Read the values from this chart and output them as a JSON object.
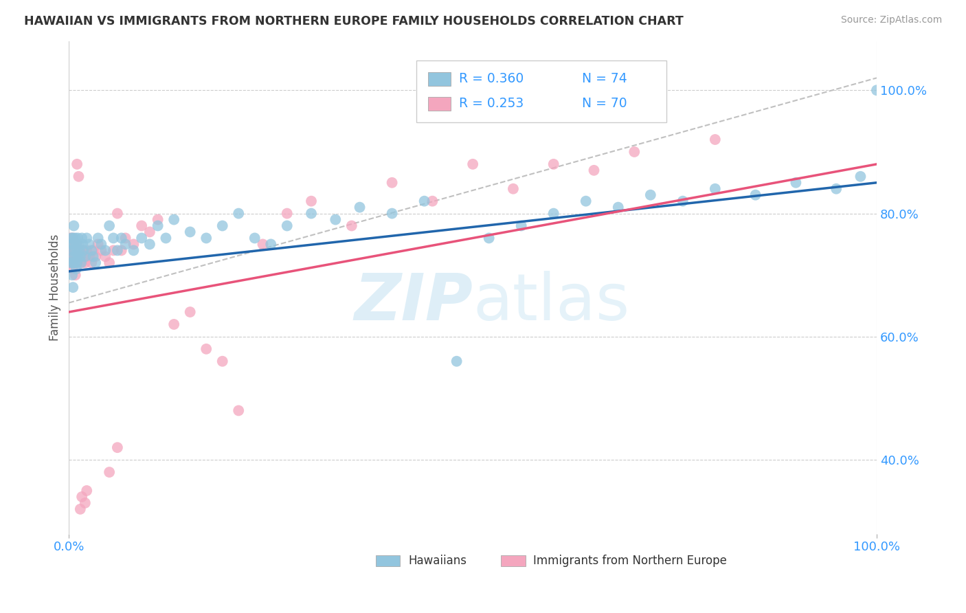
{
  "title": "HAWAIIAN VS IMMIGRANTS FROM NORTHERN EUROPE FAMILY HOUSEHOLDS CORRELATION CHART",
  "source_text": "Source: ZipAtlas.com",
  "ylabel": "Family Households",
  "right_yticks": [
    "100.0%",
    "80.0%",
    "60.0%",
    "40.0%"
  ],
  "right_ytick_vals": [
    1.0,
    0.8,
    0.6,
    0.4
  ],
  "legend_label1": "Hawaiians",
  "legend_label2": "Immigrants from Northern Europe",
  "R1": 0.36,
  "N1": 74,
  "R2": 0.253,
  "N2": 70,
  "color_blue": "#92c5de",
  "color_pink": "#f4a6be",
  "color_blue_line": "#2166ac",
  "color_pink_line": "#e8537a",
  "color_dash_line": "#c0c0c0",
  "watermark_color": "#d0e8f5",
  "blue_scatter_x": [
    0.002,
    0.003,
    0.003,
    0.004,
    0.004,
    0.005,
    0.005,
    0.005,
    0.006,
    0.006,
    0.006,
    0.007,
    0.007,
    0.008,
    0.008,
    0.009,
    0.009,
    0.01,
    0.01,
    0.011,
    0.011,
    0.012,
    0.013,
    0.014,
    0.015,
    0.016,
    0.017,
    0.018,
    0.02,
    0.022,
    0.025,
    0.028,
    0.03,
    0.033,
    0.036,
    0.04,
    0.045,
    0.05,
    0.055,
    0.06,
    0.065,
    0.07,
    0.08,
    0.09,
    0.1,
    0.11,
    0.12,
    0.13,
    0.15,
    0.17,
    0.19,
    0.21,
    0.23,
    0.25,
    0.27,
    0.3,
    0.33,
    0.36,
    0.4,
    0.44,
    0.48,
    0.52,
    0.56,
    0.6,
    0.64,
    0.68,
    0.72,
    0.76,
    0.8,
    0.85,
    0.9,
    0.95,
    0.98,
    1.0
  ],
  "blue_scatter_y": [
    0.72,
    0.74,
    0.76,
    0.7,
    0.75,
    0.68,
    0.72,
    0.76,
    0.73,
    0.75,
    0.78,
    0.72,
    0.74,
    0.73,
    0.76,
    0.71,
    0.75,
    0.74,
    0.72,
    0.73,
    0.76,
    0.75,
    0.74,
    0.73,
    0.72,
    0.76,
    0.75,
    0.74,
    0.73,
    0.76,
    0.75,
    0.74,
    0.73,
    0.72,
    0.76,
    0.75,
    0.74,
    0.78,
    0.76,
    0.74,
    0.76,
    0.75,
    0.74,
    0.76,
    0.75,
    0.78,
    0.76,
    0.79,
    0.77,
    0.76,
    0.78,
    0.8,
    0.76,
    0.75,
    0.78,
    0.8,
    0.79,
    0.81,
    0.8,
    0.82,
    0.56,
    0.76,
    0.78,
    0.8,
    0.82,
    0.81,
    0.83,
    0.82,
    0.84,
    0.83,
    0.85,
    0.84,
    0.86,
    1.0
  ],
  "pink_scatter_x": [
    0.001,
    0.002,
    0.002,
    0.003,
    0.003,
    0.004,
    0.004,
    0.005,
    0.005,
    0.006,
    0.006,
    0.007,
    0.007,
    0.008,
    0.008,
    0.009,
    0.009,
    0.01,
    0.01,
    0.011,
    0.012,
    0.013,
    0.014,
    0.015,
    0.016,
    0.017,
    0.018,
    0.02,
    0.022,
    0.025,
    0.028,
    0.03,
    0.033,
    0.036,
    0.04,
    0.045,
    0.05,
    0.055,
    0.06,
    0.065,
    0.07,
    0.08,
    0.09,
    0.1,
    0.11,
    0.13,
    0.15,
    0.17,
    0.19,
    0.21,
    0.05,
    0.06,
    0.24,
    0.27,
    0.01,
    0.012,
    0.3,
    0.35,
    0.4,
    0.45,
    0.014,
    0.016,
    0.5,
    0.55,
    0.6,
    0.65,
    0.7,
    0.02,
    0.022,
    0.8
  ],
  "pink_scatter_y": [
    0.74,
    0.76,
    0.72,
    0.73,
    0.75,
    0.71,
    0.74,
    0.72,
    0.76,
    0.73,
    0.75,
    0.72,
    0.74,
    0.73,
    0.7,
    0.72,
    0.74,
    0.73,
    0.75,
    0.74,
    0.73,
    0.72,
    0.74,
    0.73,
    0.72,
    0.74,
    0.73,
    0.72,
    0.74,
    0.73,
    0.72,
    0.74,
    0.73,
    0.75,
    0.74,
    0.73,
    0.72,
    0.74,
    0.8,
    0.74,
    0.76,
    0.75,
    0.78,
    0.77,
    0.79,
    0.62,
    0.64,
    0.58,
    0.56,
    0.48,
    0.38,
    0.42,
    0.75,
    0.8,
    0.88,
    0.86,
    0.82,
    0.78,
    0.85,
    0.82,
    0.32,
    0.34,
    0.88,
    0.84,
    0.88,
    0.87,
    0.9,
    0.33,
    0.35,
    0.92
  ],
  "blue_line_x": [
    0.0,
    1.0
  ],
  "blue_line_y": [
    0.706,
    0.85
  ],
  "pink_line_x": [
    0.0,
    1.0
  ],
  "pink_line_y": [
    0.64,
    0.88
  ],
  "diag_line_x": [
    0.0,
    1.0
  ],
  "diag_line_y": [
    0.655,
    1.02
  ],
  "xlim": [
    0.0,
    1.0
  ],
  "ylim": [
    0.28,
    1.08
  ]
}
